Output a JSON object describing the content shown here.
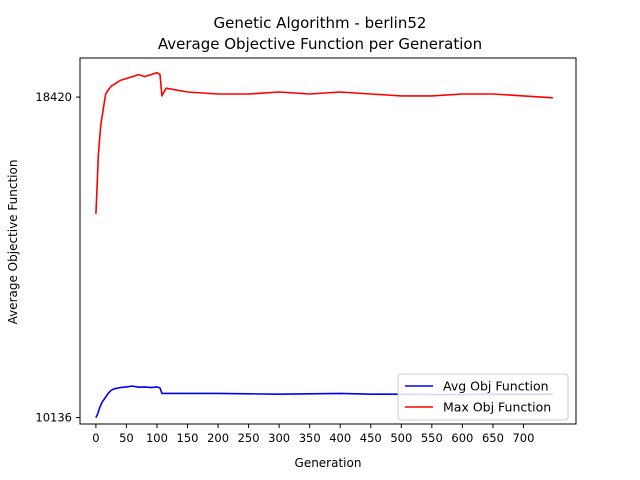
{
  "chart_data": {
    "type": "line",
    "title": "Genetic Algorithm - berlin52",
    "subtitle": "Average Objective Function per Generation",
    "xlabel": "Generation",
    "ylabel": "Average Objective Function",
    "xlim": [
      -26,
      786
    ],
    "ylim": [
      9970,
      19430
    ],
    "xticks": [
      0,
      50,
      100,
      150,
      200,
      250,
      300,
      350,
      400,
      450,
      500,
      550,
      600,
      650,
      700
    ],
    "yticks": [
      10136,
      18420
    ],
    "legend_position": "lower-right",
    "grid": false,
    "series": [
      {
        "name": "Avg Obj Function",
        "color": "#0000ff",
        "points": [
          [
            0,
            10136
          ],
          [
            3,
            10230
          ],
          [
            6,
            10380
          ],
          [
            10,
            10530
          ],
          [
            15,
            10640
          ],
          [
            20,
            10760
          ],
          [
            25,
            10840
          ],
          [
            30,
            10880
          ],
          [
            40,
            10910
          ],
          [
            50,
            10930
          ],
          [
            60,
            10950
          ],
          [
            70,
            10920
          ],
          [
            80,
            10930
          ],
          [
            90,
            10910
          ],
          [
            100,
            10930
          ],
          [
            105,
            10900
          ],
          [
            108,
            10760
          ],
          [
            115,
            10760
          ],
          [
            150,
            10760
          ],
          [
            200,
            10760
          ],
          [
            250,
            10750
          ],
          [
            300,
            10740
          ],
          [
            350,
            10750
          ],
          [
            400,
            10760
          ],
          [
            450,
            10740
          ],
          [
            500,
            10740
          ],
          [
            550,
            10730
          ],
          [
            600,
            10730
          ],
          [
            650,
            10740
          ],
          [
            700,
            10740
          ],
          [
            748,
            10740
          ]
        ]
      },
      {
        "name": "Max Obj Function",
        "color": "#ff0000",
        "points": [
          [
            0,
            15400
          ],
          [
            2,
            16100
          ],
          [
            4,
            16900
          ],
          [
            6,
            17300
          ],
          [
            8,
            17700
          ],
          [
            10,
            17900
          ],
          [
            13,
            18200
          ],
          [
            16,
            18500
          ],
          [
            20,
            18600
          ],
          [
            25,
            18700
          ],
          [
            30,
            18750
          ],
          [
            40,
            18850
          ],
          [
            50,
            18900
          ],
          [
            60,
            18950
          ],
          [
            70,
            19000
          ],
          [
            80,
            18950
          ],
          [
            90,
            19000
          ],
          [
            100,
            19050
          ],
          [
            105,
            19000
          ],
          [
            108,
            18450
          ],
          [
            115,
            18650
          ],
          [
            150,
            18550
          ],
          [
            200,
            18500
          ],
          [
            250,
            18500
          ],
          [
            300,
            18550
          ],
          [
            350,
            18500
          ],
          [
            400,
            18550
          ],
          [
            450,
            18500
          ],
          [
            500,
            18450
          ],
          [
            550,
            18450
          ],
          [
            600,
            18500
          ],
          [
            650,
            18500
          ],
          [
            700,
            18450
          ],
          [
            748,
            18400
          ]
        ]
      }
    ]
  }
}
